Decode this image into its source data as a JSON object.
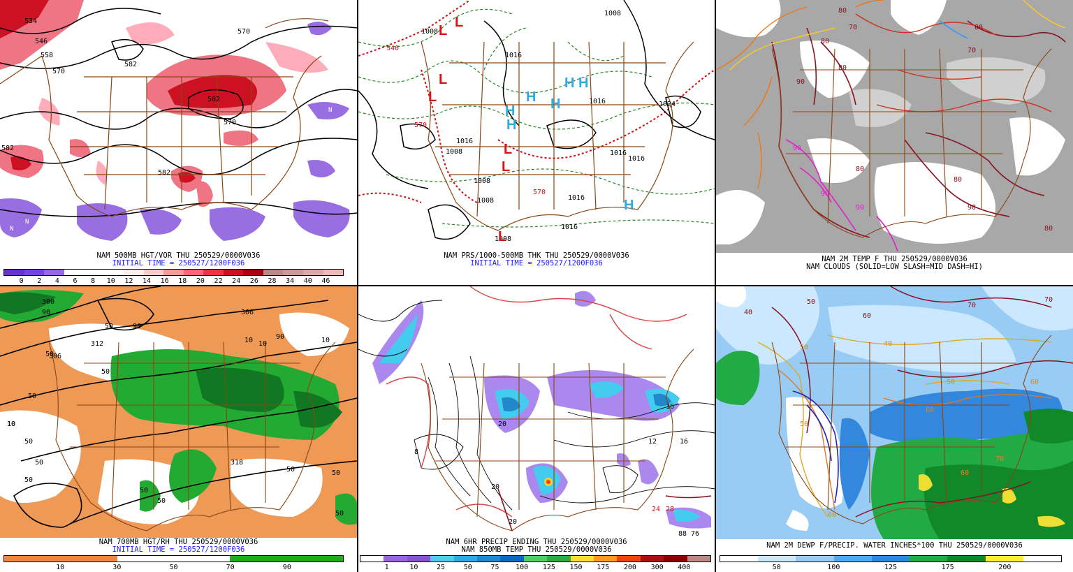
{
  "panels": [
    {
      "id": "p1",
      "title": "NAM 500MB HGT/VOR THU 250529/0000V036",
      "subtitle": "INITIAL TIME = 250527/1200F036",
      "colorbar_colors": [
        "#6633cc",
        "#7744dd",
        "#9966ee",
        "#ffffff",
        "#ffffff",
        "#ffffff",
        "#ffeeee",
        "#ffcccc",
        "#ff9999",
        "#ff6677",
        "#ee3344",
        "#cc1122",
        "#aa0011",
        "#bb8888",
        "#cc9999",
        "#ddaaaa",
        "#eebbbb"
      ],
      "colorbar_ticks": [
        "0",
        "2",
        "4",
        "6",
        "8",
        "10",
        "12",
        "14",
        "16",
        "18",
        "20",
        "22",
        "24",
        "26",
        "28",
        "34",
        "40",
        "46"
      ],
      "contour_labels": [
        "534",
        "546",
        "558",
        "570",
        "582",
        "570",
        "582",
        "570",
        "582",
        "582",
        "570"
      ],
      "markers": [
        "N",
        "N",
        "N",
        "N",
        "N"
      ]
    },
    {
      "id": "p2",
      "title": "NAM PRS/1000-500MB THK THU 250529/0000V036",
      "subtitle": "INITIAL TIME = 250527/1200F036",
      "contour_labels": [
        "1008",
        "1016",
        "1008",
        "1016",
        "1024",
        "1016",
        "1008",
        "1008",
        "1016",
        "1016",
        "1008",
        "1016",
        "1016",
        "1008",
        "540",
        "570",
        "570",
        "1016",
        "1008"
      ],
      "high_letters": [
        "H",
        "H",
        "H",
        "H",
        "H",
        "H",
        "H"
      ],
      "low_letters": [
        "L",
        "L",
        "L",
        "L",
        "L",
        "L",
        "L"
      ]
    },
    {
      "id": "p3",
      "title": "NAM 2M TEMP F THU 250529/0000V036",
      "subtitle": "NAM CLOUDS (SOLID=LOW SLASH=MID DASH=HI)",
      "contour_labels": [
        "80",
        "70",
        "80",
        "90",
        "80",
        "80",
        "90",
        "80",
        "90",
        "80",
        "70",
        "80",
        "80",
        "90",
        "80",
        "80",
        "70",
        "80",
        "80",
        "90"
      ]
    },
    {
      "id": "p4",
      "title": "NAM 700MB HGT/RH THU 250529/0000V036",
      "subtitle": "INITIAL TIME = 250527/1200F036",
      "colorbar_colors": [
        "#ee8844",
        "#ee8844",
        "#ffffff",
        "#ffffff",
        "#22aa22",
        "#22aa22"
      ],
      "colorbar_ticks": [
        "10",
        "30",
        "50",
        "70",
        "90"
      ],
      "contour_labels": [
        "50",
        "90",
        "50",
        "10",
        "50",
        "10",
        "90",
        "50",
        "10",
        "50",
        "312",
        "306",
        "300",
        "306",
        "318",
        "50",
        "50",
        "10",
        "50",
        "50",
        "90",
        "10",
        "50",
        "50",
        "50"
      ]
    },
    {
      "id": "p5",
      "title": "NAM 6HR PRECIP ENDING THU 250529/0000V036",
      "subtitle": "NAM 850MB TEMP THU 250529/0000V036",
      "colorbar_colors": [
        "#ffffff",
        "#9966dd",
        "#8855cc",
        "#55ccee",
        "#33aadd",
        "#2288cc",
        "#1166bb",
        "#55cc66",
        "#33aa44",
        "#ffdd33",
        "#ff9922",
        "#ee4411",
        "#aa1111",
        "#880000",
        "#bb8888"
      ],
      "colorbar_ticks": [
        "1",
        "10",
        "25",
        "50",
        "75",
        "100",
        "125",
        "150",
        "175",
        "200",
        "300",
        "400"
      ],
      "contour_labels": [
        "20",
        "16",
        "12",
        "20",
        "8",
        "16",
        "20",
        "24",
        "28",
        "88",
        "76"
      ]
    },
    {
      "id": "p6",
      "title": "NAM 2M DEWP F/PRECIP. WATER INCHES*100 THU 250529/0000V036",
      "subtitle": "",
      "colorbar_colors": [
        "#ffffff",
        "#cce8ff",
        "#99ccf4",
        "#55aaee",
        "#3388dd",
        "#22aa44",
        "#11882a",
        "#ffee33",
        "#ffffff"
      ],
      "colorbar_ticks": [
        "50",
        "100",
        "125",
        "175",
        "200"
      ],
      "contour_labels": [
        "40",
        "50",
        "60",
        "70",
        "50",
        "60",
        "40",
        "50",
        "60",
        "70",
        "60",
        "50",
        "70",
        "60"
      ]
    }
  ]
}
